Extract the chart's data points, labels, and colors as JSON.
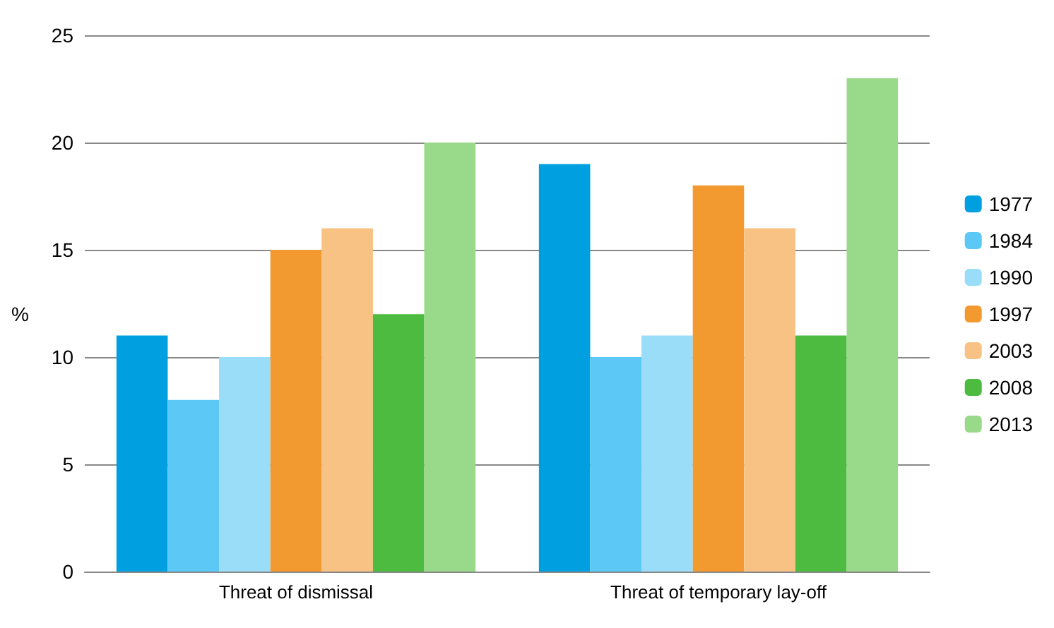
{
  "chart_data": {
    "type": "bar",
    "ylabel": "%",
    "categories": [
      "Threat of dismissal",
      "Threat of temporary lay-off"
    ],
    "series": [
      {
        "name": "1977",
        "color": "#00a0e0",
        "values": [
          11,
          19
        ]
      },
      {
        "name": "1984",
        "color": "#5bc8f5",
        "values": [
          8,
          10
        ]
      },
      {
        "name": "1990",
        "color": "#99ddf8",
        "values": [
          10,
          11
        ]
      },
      {
        "name": "1997",
        "color": "#f29a30",
        "values": [
          15,
          18
        ]
      },
      {
        "name": "2003",
        "color": "#f7c283",
        "values": [
          16,
          16
        ]
      },
      {
        "name": "2008",
        "color": "#4cbb3f",
        "values": [
          12,
          11
        ]
      },
      {
        "name": "2013",
        "color": "#99d98a",
        "values": [
          20,
          23
        ]
      }
    ],
    "ylim": [
      0,
      25
    ],
    "yticks": [
      0,
      5,
      10,
      15,
      20,
      25
    ],
    "grid": "y",
    "legend": "right"
  }
}
